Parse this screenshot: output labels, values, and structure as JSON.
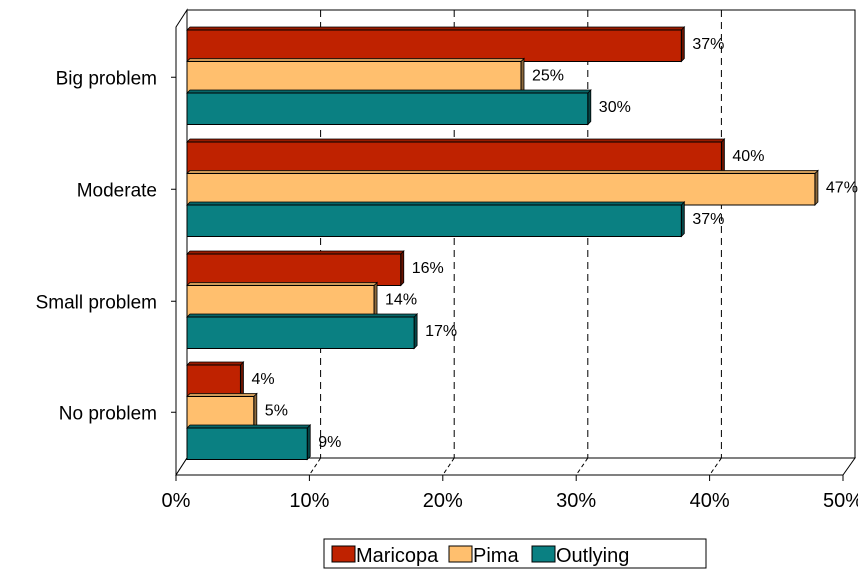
{
  "chart_data": {
    "type": "bar",
    "orientation": "horizontal",
    "categories": [
      "Big problem",
      "Moderate",
      "Small problem",
      "No problem"
    ],
    "series": [
      {
        "name": "Maricopa",
        "color": "#bf2200",
        "values": [
          37,
          40,
          16,
          4
        ],
        "labels": [
          "37%",
          "40%",
          "16%",
          "4%"
        ]
      },
      {
        "name": "Pima",
        "color": "#ffbf6e",
        "values": [
          25,
          47,
          14,
          5
        ],
        "labels": [
          "25%",
          "47%",
          "14%",
          "5%"
        ]
      },
      {
        "name": "Outlying",
        "color": "#0a8082",
        "values": [
          30,
          37,
          17,
          9
        ],
        "labels": [
          "30%",
          "37%",
          "17%",
          "9%"
        ]
      }
    ],
    "xlim": [
      0,
      50
    ],
    "x_ticks": [
      0,
      10,
      20,
      30,
      40,
      50
    ],
    "x_tick_labels": [
      "0%",
      "10%",
      "20%",
      "30%",
      "40%",
      "50%"
    ],
    "grid": "vertical dashed",
    "legend_position": "bottom",
    "style": "3d"
  }
}
